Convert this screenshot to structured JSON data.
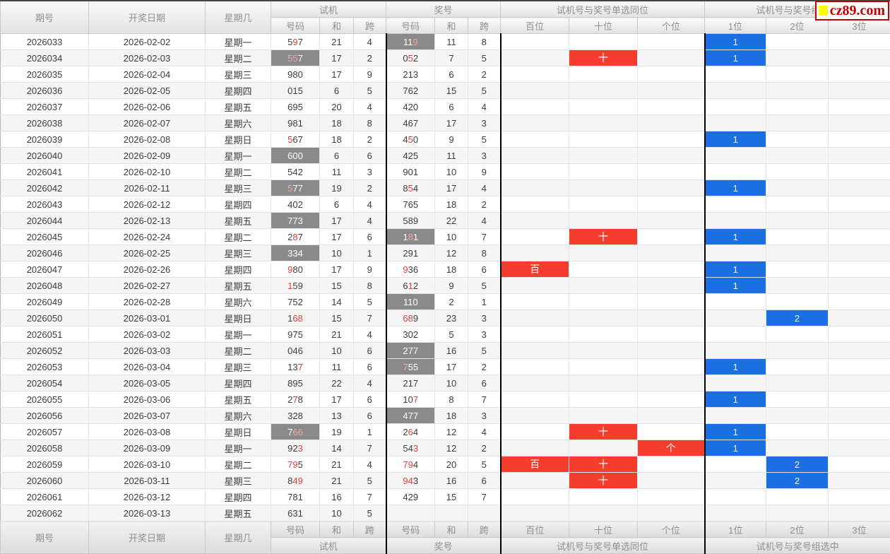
{
  "logo": {
    "text": "cz89.com"
  },
  "colors": {
    "accent_red": "#f53d2e",
    "accent_blue": "#1b6fe0",
    "gray_cell": "#8a8a8a",
    "red_digit": "#e23f38",
    "logo_red": "#c40000",
    "logo_yellow": "#ffff00"
  },
  "table": {
    "columns": {
      "period": "期号",
      "date": "开奖日期",
      "week": "星期几",
      "group_test": "试机",
      "group_win": "奖号",
      "group_same_pos": "试机号与奖号单选同位",
      "group_group_hit": "试机号与奖号组选中",
      "num": "号码",
      "sum": "和",
      "span": "跨",
      "pos_bai": "百位",
      "pos_shi": "十位",
      "pos_ge": "个位",
      "hit1": "1位",
      "hit2": "2位",
      "hit3": "3位"
    },
    "mark_labels": {
      "bai": "百",
      "shi": "十",
      "ge": "个"
    },
    "rows": [
      {
        "period": "2026033",
        "date": "2026-02-02",
        "week": "星期一",
        "test": {
          "num": "597",
          "sum": "21",
          "span": "4",
          "gray": false,
          "red": [
            1
          ]
        },
        "win": {
          "num": "119",
          "sum": "11",
          "span": "8",
          "gray": true,
          "red": [
            2
          ]
        },
        "same_pos": [],
        "group_hit": {
          "col": 1,
          "count": "1"
        }
      },
      {
        "period": "2026034",
        "date": "2026-02-03",
        "week": "星期二",
        "test": {
          "num": "557",
          "sum": "17",
          "span": "2",
          "gray": true,
          "red": [
            0,
            1
          ]
        },
        "win": {
          "num": "052",
          "sum": "7",
          "span": "5",
          "gray": false,
          "red": [
            1
          ]
        },
        "same_pos": [
          "shi"
        ],
        "group_hit": {
          "col": 1,
          "count": "1"
        }
      },
      {
        "period": "2026035",
        "date": "2026-02-04",
        "week": "星期三",
        "test": {
          "num": "980",
          "sum": "17",
          "span": "9",
          "gray": false,
          "red": []
        },
        "win": {
          "num": "213",
          "sum": "6",
          "span": "2",
          "gray": false,
          "red": []
        },
        "same_pos": [],
        "group_hit": null
      },
      {
        "period": "2026036",
        "date": "2026-02-05",
        "week": "星期四",
        "test": {
          "num": "015",
          "sum": "6",
          "span": "5",
          "gray": false,
          "red": []
        },
        "win": {
          "num": "762",
          "sum": "15",
          "span": "5",
          "gray": false,
          "red": []
        },
        "same_pos": [],
        "group_hit": null
      },
      {
        "period": "2026037",
        "date": "2026-02-06",
        "week": "星期五",
        "test": {
          "num": "695",
          "sum": "20",
          "span": "4",
          "gray": false,
          "red": []
        },
        "win": {
          "num": "420",
          "sum": "6",
          "span": "4",
          "gray": false,
          "red": []
        },
        "same_pos": [],
        "group_hit": null
      },
      {
        "period": "2026038",
        "date": "2026-02-07",
        "week": "星期六",
        "test": {
          "num": "981",
          "sum": "18",
          "span": "8",
          "gray": false,
          "red": []
        },
        "win": {
          "num": "467",
          "sum": "17",
          "span": "3",
          "gray": false,
          "red": []
        },
        "same_pos": [],
        "group_hit": null
      },
      {
        "period": "2026039",
        "date": "2026-02-08",
        "week": "星期日",
        "test": {
          "num": "567",
          "sum": "18",
          "span": "2",
          "gray": false,
          "red": [
            0
          ]
        },
        "win": {
          "num": "450",
          "sum": "9",
          "span": "5",
          "gray": false,
          "red": [
            1
          ]
        },
        "same_pos": [],
        "group_hit": {
          "col": 1,
          "count": "1"
        }
      },
      {
        "period": "2026040",
        "date": "2026-02-09",
        "week": "星期一",
        "test": {
          "num": "600",
          "sum": "6",
          "span": "6",
          "gray": true,
          "red": []
        },
        "win": {
          "num": "425",
          "sum": "11",
          "span": "3",
          "gray": false,
          "red": []
        },
        "same_pos": [],
        "group_hit": null
      },
      {
        "period": "2026041",
        "date": "2026-02-10",
        "week": "星期二",
        "test": {
          "num": "542",
          "sum": "11",
          "span": "3",
          "gray": false,
          "red": []
        },
        "win": {
          "num": "901",
          "sum": "10",
          "span": "9",
          "gray": false,
          "red": []
        },
        "same_pos": [],
        "group_hit": null
      },
      {
        "period": "2026042",
        "date": "2026-02-11",
        "week": "星期三",
        "test": {
          "num": "577",
          "sum": "19",
          "span": "2",
          "gray": true,
          "red": [
            0
          ]
        },
        "win": {
          "num": "854",
          "sum": "17",
          "span": "4",
          "gray": false,
          "red": [
            1
          ]
        },
        "same_pos": [],
        "group_hit": {
          "col": 1,
          "count": "1"
        }
      },
      {
        "period": "2026043",
        "date": "2026-02-12",
        "week": "星期四",
        "test": {
          "num": "402",
          "sum": "6",
          "span": "4",
          "gray": false,
          "red": []
        },
        "win": {
          "num": "765",
          "sum": "18",
          "span": "2",
          "gray": false,
          "red": []
        },
        "same_pos": [],
        "group_hit": null
      },
      {
        "period": "2026044",
        "date": "2026-02-13",
        "week": "星期五",
        "test": {
          "num": "773",
          "sum": "17",
          "span": "4",
          "gray": true,
          "red": []
        },
        "win": {
          "num": "589",
          "sum": "22",
          "span": "4",
          "gray": false,
          "red": []
        },
        "same_pos": [],
        "group_hit": null
      },
      {
        "period": "2026045",
        "date": "2026-02-24",
        "week": "星期二",
        "test": {
          "num": "287",
          "sum": "17",
          "span": "6",
          "gray": false,
          "red": [
            1
          ]
        },
        "win": {
          "num": "181",
          "sum": "10",
          "span": "7",
          "gray": true,
          "red": [
            1
          ]
        },
        "same_pos": [
          "shi"
        ],
        "group_hit": {
          "col": 1,
          "count": "1"
        }
      },
      {
        "period": "2026046",
        "date": "2026-02-25",
        "week": "星期三",
        "test": {
          "num": "334",
          "sum": "10",
          "span": "1",
          "gray": true,
          "red": []
        },
        "win": {
          "num": "291",
          "sum": "12",
          "span": "8",
          "gray": false,
          "red": []
        },
        "same_pos": [],
        "group_hit": null
      },
      {
        "period": "2026047",
        "date": "2026-02-26",
        "week": "星期四",
        "test": {
          "num": "980",
          "sum": "17",
          "span": "9",
          "gray": false,
          "red": [
            0
          ]
        },
        "win": {
          "num": "936",
          "sum": "18",
          "span": "6",
          "gray": false,
          "red": [
            0
          ]
        },
        "same_pos": [
          "bai"
        ],
        "group_hit": {
          "col": 1,
          "count": "1"
        }
      },
      {
        "period": "2026048",
        "date": "2026-02-27",
        "week": "星期五",
        "test": {
          "num": "159",
          "sum": "15",
          "span": "8",
          "gray": false,
          "red": [
            0
          ]
        },
        "win": {
          "num": "612",
          "sum": "9",
          "span": "5",
          "gray": false,
          "red": [
            1
          ]
        },
        "same_pos": [],
        "group_hit": {
          "col": 1,
          "count": "1"
        }
      },
      {
        "period": "2026049",
        "date": "2026-02-28",
        "week": "星期六",
        "test": {
          "num": "752",
          "sum": "14",
          "span": "5",
          "gray": false,
          "red": []
        },
        "win": {
          "num": "110",
          "sum": "2",
          "span": "1",
          "gray": true,
          "red": []
        },
        "same_pos": [],
        "group_hit": null
      },
      {
        "period": "2026050",
        "date": "2026-03-01",
        "week": "星期日",
        "test": {
          "num": "168",
          "sum": "15",
          "span": "7",
          "gray": false,
          "red": [
            1,
            2
          ]
        },
        "win": {
          "num": "689",
          "sum": "23",
          "span": "3",
          "gray": false,
          "red": [
            0,
            1
          ]
        },
        "same_pos": [],
        "group_hit": {
          "col": 2,
          "count": "2"
        }
      },
      {
        "period": "2026051",
        "date": "2026-03-02",
        "week": "星期一",
        "test": {
          "num": "975",
          "sum": "21",
          "span": "4",
          "gray": false,
          "red": []
        },
        "win": {
          "num": "302",
          "sum": "5",
          "span": "3",
          "gray": false,
          "red": []
        },
        "same_pos": [],
        "group_hit": null
      },
      {
        "period": "2026052",
        "date": "2026-03-03",
        "week": "星期二",
        "test": {
          "num": "046",
          "sum": "10",
          "span": "6",
          "gray": false,
          "red": []
        },
        "win": {
          "num": "277",
          "sum": "16",
          "span": "5",
          "gray": true,
          "red": []
        },
        "same_pos": [],
        "group_hit": null
      },
      {
        "period": "2026053",
        "date": "2026-03-04",
        "week": "星期三",
        "test": {
          "num": "137",
          "sum": "11",
          "span": "6",
          "gray": false,
          "red": [
            2
          ]
        },
        "win": {
          "num": "755",
          "sum": "17",
          "span": "2",
          "gray": true,
          "red": [
            0
          ]
        },
        "same_pos": [],
        "group_hit": {
          "col": 1,
          "count": "1"
        }
      },
      {
        "period": "2026054",
        "date": "2026-03-05",
        "week": "星期四",
        "test": {
          "num": "895",
          "sum": "22",
          "span": "4",
          "gray": false,
          "red": []
        },
        "win": {
          "num": "217",
          "sum": "10",
          "span": "6",
          "gray": false,
          "red": []
        },
        "same_pos": [],
        "group_hit": null
      },
      {
        "period": "2026055",
        "date": "2026-03-06",
        "week": "星期五",
        "test": {
          "num": "278",
          "sum": "17",
          "span": "6",
          "gray": false,
          "red": [
            1
          ]
        },
        "win": {
          "num": "107",
          "sum": "8",
          "span": "7",
          "gray": false,
          "red": [
            2
          ]
        },
        "same_pos": [],
        "group_hit": {
          "col": 1,
          "count": "1"
        }
      },
      {
        "period": "2026056",
        "date": "2026-03-07",
        "week": "星期六",
        "test": {
          "num": "328",
          "sum": "13",
          "span": "6",
          "gray": false,
          "red": []
        },
        "win": {
          "num": "477",
          "sum": "18",
          "span": "3",
          "gray": true,
          "red": []
        },
        "same_pos": [],
        "group_hit": null
      },
      {
        "period": "2026057",
        "date": "2026-03-08",
        "week": "星期日",
        "test": {
          "num": "766",
          "sum": "19",
          "span": "1",
          "gray": true,
          "red": [
            1,
            2
          ]
        },
        "win": {
          "num": "264",
          "sum": "12",
          "span": "4",
          "gray": false,
          "red": [
            1
          ]
        },
        "same_pos": [
          "shi"
        ],
        "group_hit": {
          "col": 1,
          "count": "1"
        }
      },
      {
        "period": "2026058",
        "date": "2026-03-09",
        "week": "星期一",
        "test": {
          "num": "923",
          "sum": "14",
          "span": "7",
          "gray": false,
          "red": [
            2
          ]
        },
        "win": {
          "num": "543",
          "sum": "12",
          "span": "2",
          "gray": false,
          "red": [
            2
          ]
        },
        "same_pos": [
          "ge"
        ],
        "group_hit": {
          "col": 1,
          "count": "1"
        }
      },
      {
        "period": "2026059",
        "date": "2026-03-10",
        "week": "星期二",
        "test": {
          "num": "795",
          "sum": "21",
          "span": "4",
          "gray": false,
          "red": [
            0,
            1
          ]
        },
        "win": {
          "num": "794",
          "sum": "20",
          "span": "5",
          "gray": false,
          "red": [
            0,
            1
          ]
        },
        "same_pos": [
          "bai",
          "shi"
        ],
        "group_hit": {
          "col": 2,
          "count": "2"
        }
      },
      {
        "period": "2026060",
        "date": "2026-03-11",
        "week": "星期三",
        "test": {
          "num": "849",
          "sum": "21",
          "span": "5",
          "gray": false,
          "red": [
            1,
            2
          ]
        },
        "win": {
          "num": "943",
          "sum": "16",
          "span": "6",
          "gray": false,
          "red": [
            0,
            1
          ]
        },
        "same_pos": [
          "shi"
        ],
        "group_hit": {
          "col": 2,
          "count": "2"
        }
      },
      {
        "period": "2026061",
        "date": "2026-03-12",
        "week": "星期四",
        "test": {
          "num": "781",
          "sum": "16",
          "span": "7",
          "gray": false,
          "red": []
        },
        "win": {
          "num": "429",
          "sum": "15",
          "span": "7",
          "gray": false,
          "red": []
        },
        "same_pos": [],
        "group_hit": null
      },
      {
        "period": "2026062",
        "date": "2026-03-13",
        "week": "星期五",
        "test": {
          "num": "631",
          "sum": "10",
          "span": "5",
          "gray": false,
          "red": []
        },
        "win": {
          "num": "",
          "sum": "",
          "span": "",
          "gray": false,
          "red": []
        },
        "same_pos": [],
        "group_hit": null
      }
    ]
  }
}
